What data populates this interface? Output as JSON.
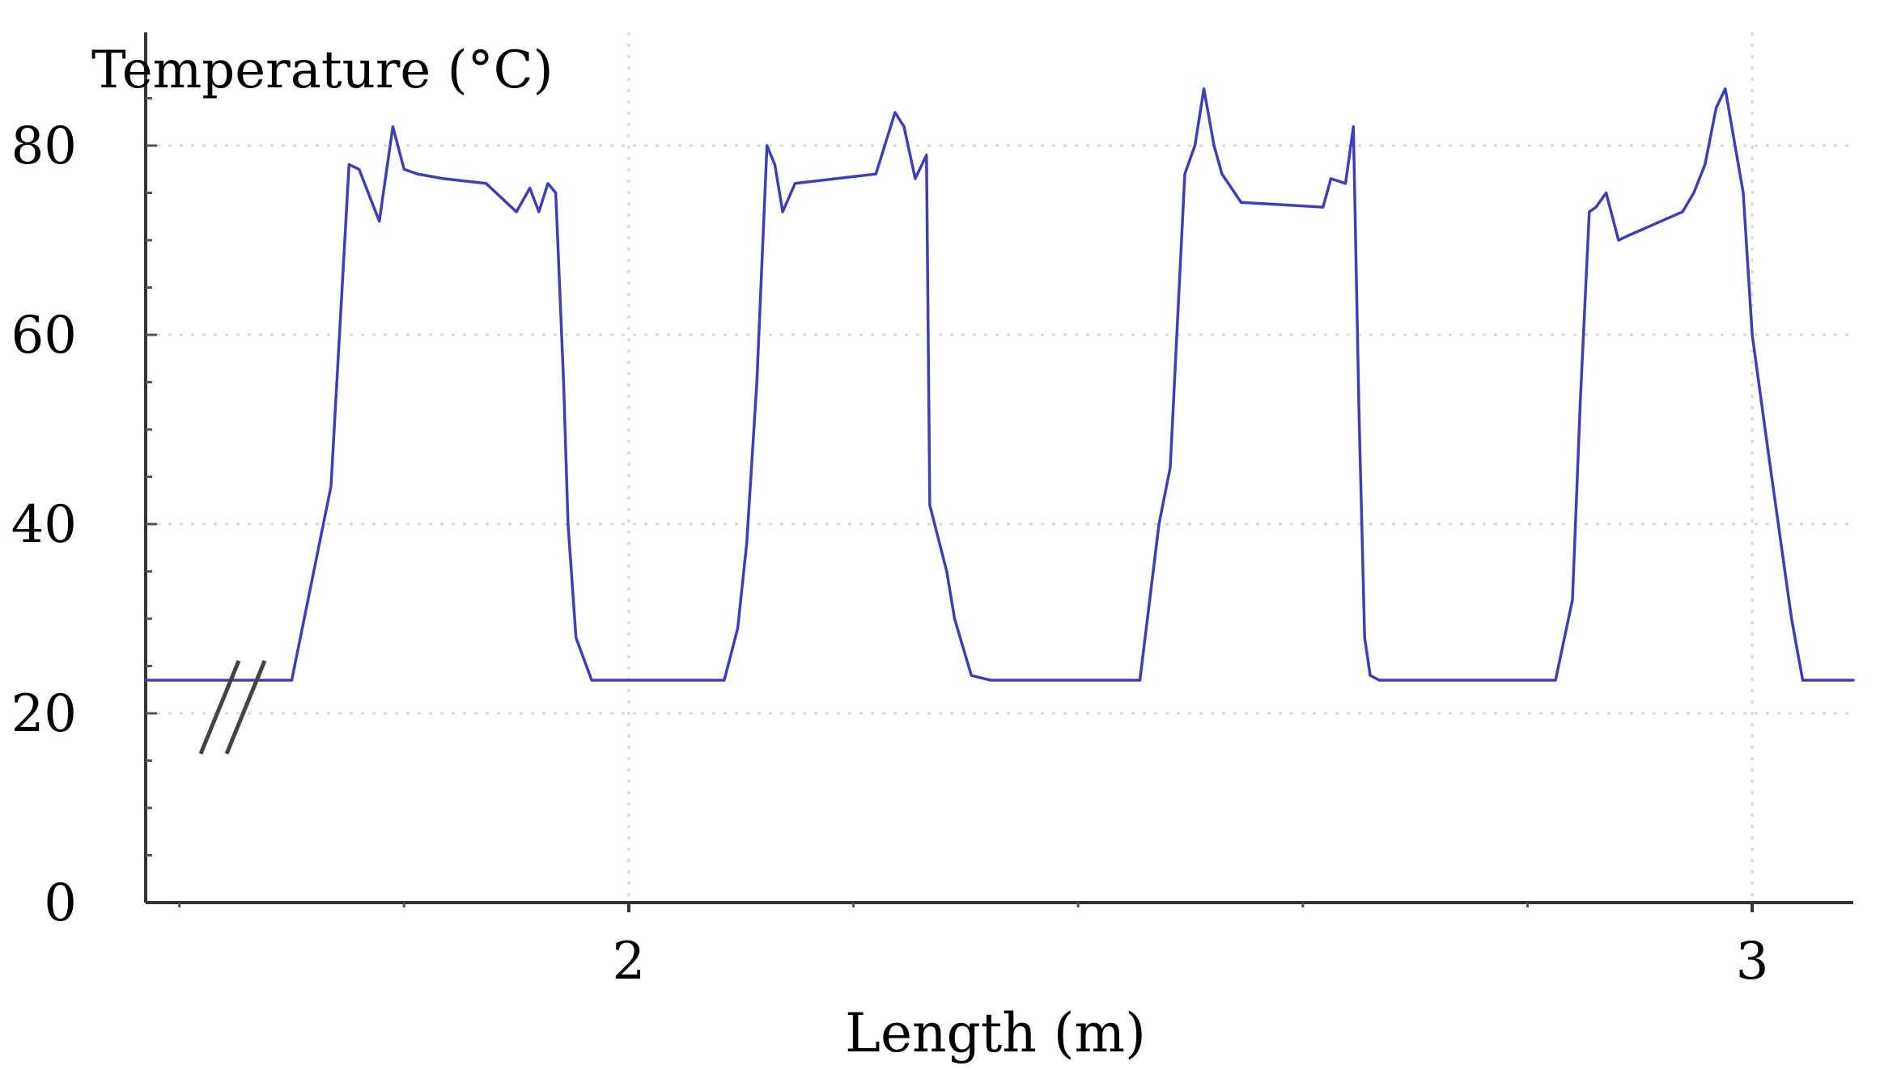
{
  "chart_data": {
    "type": "line",
    "ylabel": "Temperature (°C)",
    "xlabel": "Length (m)",
    "xlim": [
      1.57,
      3.09
    ],
    "ylim": [
      0,
      80
    ],
    "y_ticks": [
      0,
      20,
      40,
      60,
      80
    ],
    "y_tick_labels": [
      "0",
      "20",
      "40",
      "60",
      "80"
    ],
    "x_tick_labels_positions": [
      2,
      3
    ],
    "x_tick_labels": [
      "2",
      "3"
    ],
    "grid": true,
    "axis_break": "//",
    "colors": {
      "line": "#3f3fb3",
      "axis": "#333333",
      "grid": "#d8d8d8"
    },
    "series": [
      {
        "x": [
          1.57,
          1.7,
          1.735,
          1.751,
          1.76,
          1.778,
          1.79,
          1.8,
          1.812,
          1.835,
          1.873,
          1.9,
          1.912,
          1.92,
          1.928,
          1.935,
          1.942,
          1.946,
          1.953,
          1.967,
          1.975,
          1.988,
          2.0,
          2.05,
          2.085,
          2.097,
          2.105,
          2.114,
          2.123,
          2.13,
          2.137,
          2.148,
          2.22,
          2.237,
          2.245,
          2.255,
          2.265,
          2.268,
          2.283,
          2.29,
          2.305,
          2.322,
          2.34,
          2.4,
          2.455,
          2.472,
          2.482,
          2.495,
          2.504,
          2.512,
          2.521,
          2.528,
          2.545,
          2.618,
          2.625,
          2.638,
          2.645,
          2.65,
          2.655,
          2.66,
          2.668,
          2.675,
          2.7,
          2.8,
          2.825,
          2.84,
          2.847,
          2.855,
          2.861,
          2.87,
          2.881,
          2.89,
          2.938,
          2.948,
          2.958,
          2.968,
          2.976,
          2.992,
          3.0,
          3.015,
          3.035,
          3.045,
          3.05,
          3.09
        ],
        "y": [
          23.5,
          23.5,
          44,
          78,
          77.5,
          72,
          82,
          77.5,
          77,
          76.5,
          76,
          73,
          75.5,
          73,
          76,
          75,
          55,
          40,
          28,
          23.5,
          23.5,
          23.5,
          23.5,
          23.5,
          23.5,
          29,
          38,
          55,
          80,
          78,
          73,
          76,
          77,
          83.5,
          82,
          76.5,
          79,
          42,
          35,
          30,
          24,
          23.5,
          23.5,
          23.5,
          23.5,
          40,
          46,
          77,
          80,
          86,
          80,
          77,
          74,
          73.5,
          76.5,
          76,
          82,
          52,
          28,
          24,
          23.5,
          23.5,
          23.5,
          23.5,
          23.5,
          32,
          53,
          73,
          73.5,
          75,
          70,
          70.5,
          73,
          75,
          78,
          84,
          86,
          75,
          60,
          47,
          30,
          23.5,
          23.5,
          23.5
        ]
      }
    ]
  }
}
